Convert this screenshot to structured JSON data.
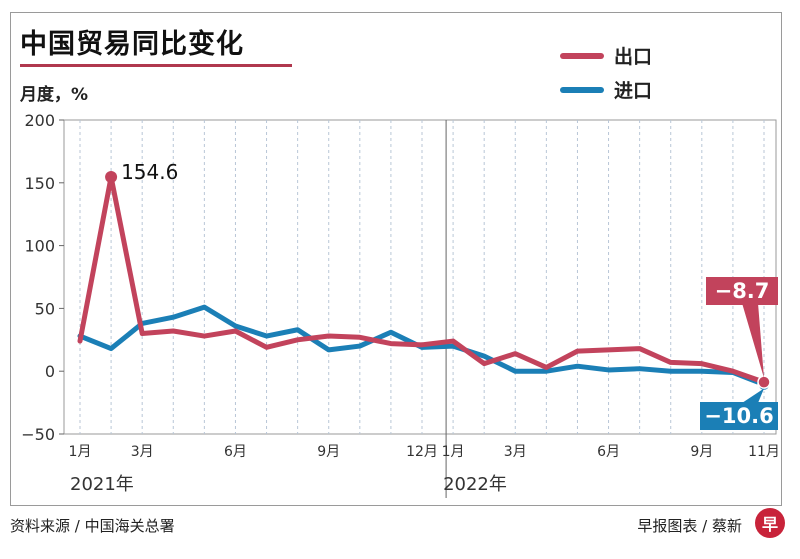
{
  "title": "中国贸易同比变化",
  "unit": "月度，%",
  "legend": [
    {
      "label": "出口",
      "color": "#c2435c"
    },
    {
      "label": "进口",
      "color": "#1b7fb6"
    }
  ],
  "source": "资料来源 / 中国海关总署",
  "credit": "早报图表 / 蔡新",
  "logo_text": "早",
  "chart_data": {
    "type": "line",
    "title": "中国贸易同比变化",
    "ylabel": "月度，%",
    "xlabel": "",
    "ylim": [
      -50,
      200
    ],
    "yticks": [
      200,
      150,
      100,
      50,
      0,
      -50
    ],
    "grid": "vertical dashed",
    "legend_position": "top-right",
    "x": [
      "2021-01",
      "2021-02",
      "2021-03",
      "2021-04",
      "2021-05",
      "2021-06",
      "2021-07",
      "2021-08",
      "2021-09",
      "2021-10",
      "2021-11",
      "2021-12",
      "2022-01",
      "2022-02",
      "2022-03",
      "2022-04",
      "2022-05",
      "2022-06",
      "2022-07",
      "2022-08",
      "2022-09",
      "2022-10",
      "2022-11"
    ],
    "xtick_labels": [
      {
        "x": "2021-01",
        "label": "1月"
      },
      {
        "x": "2021-03",
        "label": "3月"
      },
      {
        "x": "2021-06",
        "label": "6月"
      },
      {
        "x": "2021-09",
        "label": "9月"
      },
      {
        "x": "2021-12",
        "label": "12月"
      },
      {
        "x": "2022-01",
        "label": "1月"
      },
      {
        "x": "2022-03",
        "label": "3月"
      },
      {
        "x": "2022-06",
        "label": "6月"
      },
      {
        "x": "2022-09",
        "label": "9月"
      },
      {
        "x": "2022-11",
        "label": "11月"
      }
    ],
    "year_labels": [
      {
        "x": "2021-01",
        "label": "2021年"
      },
      {
        "x": "2022-01",
        "label": "2022年"
      }
    ],
    "series": [
      {
        "name": "出口",
        "color": "#c2435c",
        "values": [
          24,
          154.6,
          30,
          32,
          28,
          32,
          19,
          25,
          28,
          27,
          22,
          21,
          24,
          6,
          14,
          3,
          16,
          17,
          18,
          7,
          6,
          0,
          -8.7
        ]
      },
      {
        "name": "进口",
        "color": "#1b7fb6",
        "values": [
          28,
          18,
          38,
          43,
          51,
          36,
          28,
          33,
          17,
          20,
          31,
          19,
          20,
          12,
          0,
          0,
          4,
          1,
          2,
          0,
          0,
          -1,
          -10.6
        ]
      }
    ],
    "annotations": [
      {
        "series": 0,
        "index": 1,
        "label": "154.6"
      },
      {
        "series": 0,
        "index": 22,
        "label": "−8.7"
      },
      {
        "series": 1,
        "index": 22,
        "label": "−10.6"
      }
    ]
  }
}
